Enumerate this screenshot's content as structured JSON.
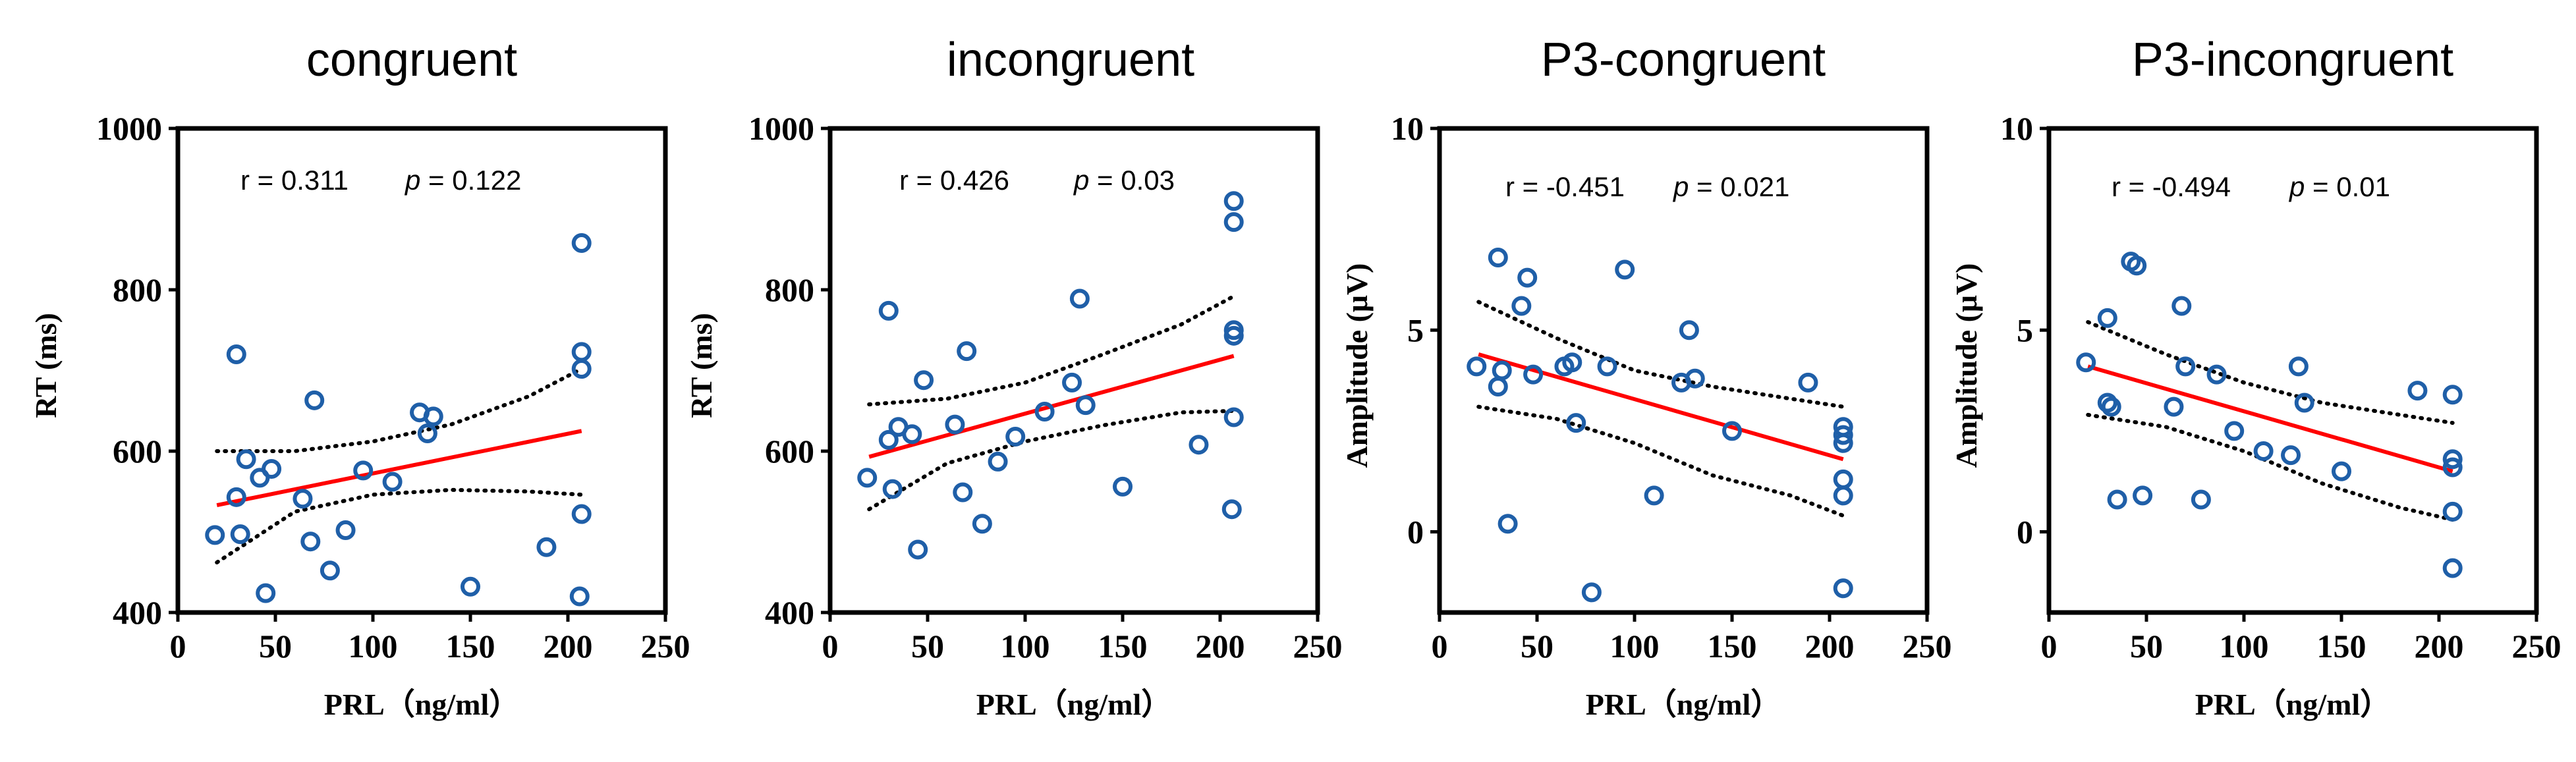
{
  "chart_data": [
    {
      "type": "scatter",
      "title": "congruent",
      "xlabel": "PRL（ng/ml）",
      "ylabel": "RT (ms)",
      "xlim": [
        0,
        250
      ],
      "ylim": [
        400,
        1000
      ],
      "xticks": [
        "0",
        "50",
        "100",
        "150",
        "200",
        "250"
      ],
      "yticks": [
        "400",
        "600",
        "800",
        "1000"
      ],
      "ytick_values": [
        400,
        600,
        800,
        1000
      ],
      "stat_r": "r = 0.311",
      "stat_p_label": "p",
      "stat_p_value": " = 0.122",
      "fit_line": [
        [
          20,
          533
        ],
        [
          207,
          625
        ]
      ],
      "ci_upper": [
        [
          20,
          600
        ],
        [
          60,
          600
        ],
        [
          100,
          612
        ],
        [
          140,
          633
        ],
        [
          180,
          668
        ],
        [
          207,
          702
        ]
      ],
      "ci_lower": [
        [
          20,
          462
        ],
        [
          60,
          525
        ],
        [
          100,
          546
        ],
        [
          140,
          552
        ],
        [
          180,
          550
        ],
        [
          207,
          546
        ]
      ],
      "points": [
        [
          19,
          496
        ],
        [
          30,
          720
        ],
        [
          30,
          543
        ],
        [
          32,
          497
        ],
        [
          35,
          590
        ],
        [
          42,
          567
        ],
        [
          45,
          424
        ],
        [
          48,
          578
        ],
        [
          64,
          541
        ],
        [
          68,
          488
        ],
        [
          70,
          663
        ],
        [
          78,
          452
        ],
        [
          86,
          502
        ],
        [
          95,
          576
        ],
        [
          110,
          562
        ],
        [
          124,
          648
        ],
        [
          128,
          622
        ],
        [
          131,
          643
        ],
        [
          150,
          432
        ],
        [
          189,
          481
        ],
        [
          206,
          420
        ],
        [
          207,
          702
        ],
        [
          207,
          723
        ],
        [
          207,
          522
        ],
        [
          207,
          858
        ]
      ]
    },
    {
      "type": "scatter",
      "title": "incongruent",
      "xlabel": "PRL（ng/ml）",
      "ylabel": "RT (ms)",
      "xlim": [
        0,
        250
      ],
      "ylim": [
        400,
        1000
      ],
      "xticks": [
        "0",
        "50",
        "100",
        "150",
        "200",
        "250"
      ],
      "yticks": [
        "400",
        "600",
        "800",
        "1000"
      ],
      "ytick_values": [
        400,
        600,
        800,
        1000
      ],
      "stat_r": "r = 0.426",
      "stat_p_label": "p",
      "stat_p_value": " = 0.03",
      "fit_line": [
        [
          20,
          593
        ],
        [
          207,
          718
        ]
      ],
      "ci_upper": [
        [
          20,
          658
        ],
        [
          60,
          665
        ],
        [
          100,
          685
        ],
        [
          140,
          720
        ],
        [
          180,
          757
        ],
        [
          207,
          792
        ]
      ],
      "ci_lower": [
        [
          20,
          528
        ],
        [
          60,
          585
        ],
        [
          100,
          612
        ],
        [
          140,
          632
        ],
        [
          180,
          648
        ],
        [
          207,
          650
        ]
      ],
      "points": [
        [
          19,
          567
        ],
        [
          30,
          774
        ],
        [
          30,
          614
        ],
        [
          32,
          553
        ],
        [
          35,
          630
        ],
        [
          42,
          621
        ],
        [
          45,
          478
        ],
        [
          48,
          688
        ],
        [
          64,
          633
        ],
        [
          68,
          549
        ],
        [
          70,
          724
        ],
        [
          78,
          510
        ],
        [
          86,
          587
        ],
        [
          95,
          618
        ],
        [
          110,
          649
        ],
        [
          124,
          685
        ],
        [
          128,
          789
        ],
        [
          131,
          657
        ],
        [
          150,
          556
        ],
        [
          189,
          608
        ],
        [
          206,
          528
        ],
        [
          207,
          642
        ],
        [
          207,
          743
        ],
        [
          207,
          750
        ],
        [
          207,
          884
        ],
        [
          207,
          910
        ]
      ]
    },
    {
      "type": "scatter",
      "title": "P3-congruent",
      "xlabel": "PRL（ng/ml）",
      "ylabel": "Amplitude (μV)",
      "xlim": [
        0,
        250
      ],
      "ylim": [
        -2,
        10
      ],
      "xticks": [
        "0",
        "50",
        "100",
        "150",
        "200",
        "250"
      ],
      "yticks": [
        "0",
        "5",
        "10"
      ],
      "ytick_values": [
        0,
        5,
        10
      ],
      "stat_r": "r = -0.451",
      "stat_p_label": "p",
      "stat_p_value": " = 0.021",
      "fit_line": [
        [
          20,
          4.4
        ],
        [
          207,
          1.8
        ]
      ],
      "ci_upper": [
        [
          20,
          5.7
        ],
        [
          60,
          4.8
        ],
        [
          100,
          4.0
        ],
        [
          140,
          3.6
        ],
        [
          180,
          3.3
        ],
        [
          207,
          3.1
        ]
      ],
      "ci_lower": [
        [
          20,
          3.1
        ],
        [
          60,
          2.8
        ],
        [
          100,
          2.2
        ],
        [
          140,
          1.4
        ],
        [
          180,
          0.9
        ],
        [
          207,
          0.4
        ]
      ],
      "points": [
        [
          19,
          4.1
        ],
        [
          30,
          6.8
        ],
        [
          30,
          3.6
        ],
        [
          32,
          4.0
        ],
        [
          35,
          0.2
        ],
        [
          42,
          5.6
        ],
        [
          45,
          6.3
        ],
        [
          48,
          3.9
        ],
        [
          64,
          4.1
        ],
        [
          68,
          4.2
        ],
        [
          70,
          2.7
        ],
        [
          78,
          -1.5
        ],
        [
          86,
          4.1
        ],
        [
          95,
          6.5
        ],
        [
          110,
          0.9
        ],
        [
          124,
          3.7
        ],
        [
          128,
          5.0
        ],
        [
          131,
          3.8
        ],
        [
          150,
          2.5
        ],
        [
          189,
          3.7
        ],
        [
          207,
          -1.4
        ],
        [
          207,
          0.9
        ],
        [
          207,
          1.3
        ],
        [
          207,
          2.2
        ],
        [
          207,
          2.4
        ],
        [
          207,
          2.6
        ]
      ]
    },
    {
      "type": "scatter",
      "title": "P3-incongruent",
      "xlabel": "PRL（ng/ml）",
      "ylabel": "Amplitude (μV)",
      "xlim": [
        0,
        250
      ],
      "ylim": [
        -2,
        10
      ],
      "xticks": [
        "0",
        "50",
        "100",
        "150",
        "200",
        "250"
      ],
      "yticks": [
        "0",
        "5",
        "10"
      ],
      "ytick_values": [
        0,
        5,
        10
      ],
      "stat_r": "r = -0.494",
      "stat_p_label": "p",
      "stat_p_value": " = 0.01",
      "fit_line": [
        [
          20,
          4.1
        ],
        [
          207,
          1.5
        ]
      ],
      "ci_upper": [
        [
          20,
          5.2
        ],
        [
          60,
          4.4
        ],
        [
          100,
          3.7
        ],
        [
          140,
          3.2
        ],
        [
          180,
          2.9
        ],
        [
          207,
          2.7
        ]
      ],
      "ci_lower": [
        [
          20,
          2.9
        ],
        [
          60,
          2.6
        ],
        [
          100,
          2.0
        ],
        [
          140,
          1.2
        ],
        [
          180,
          0.6
        ],
        [
          207,
          0.3
        ]
      ],
      "points": [
        [
          19,
          4.2
        ],
        [
          30,
          5.3
        ],
        [
          30,
          3.2
        ],
        [
          32,
          3.1
        ],
        [
          35,
          0.8
        ],
        [
          42,
          6.7
        ],
        [
          45,
          6.6
        ],
        [
          48,
          0.9
        ],
        [
          64,
          3.1
        ],
        [
          68,
          5.6
        ],
        [
          70,
          4.1
        ],
        [
          78,
          0.8
        ],
        [
          86,
          3.9
        ],
        [
          95,
          2.5
        ],
        [
          110,
          2.0
        ],
        [
          124,
          1.9
        ],
        [
          128,
          4.1
        ],
        [
          131,
          3.2
        ],
        [
          150,
          1.5
        ],
        [
          189,
          3.5
        ],
        [
          207,
          -0.9
        ],
        [
          207,
          0.5
        ],
        [
          207,
          1.6
        ],
        [
          207,
          1.8
        ],
        [
          207,
          3.4
        ]
      ]
    }
  ],
  "colors": {
    "points": "#1f5fa8",
    "fit": "#ff0000",
    "ci": "#000000",
    "axis": "#000000"
  }
}
